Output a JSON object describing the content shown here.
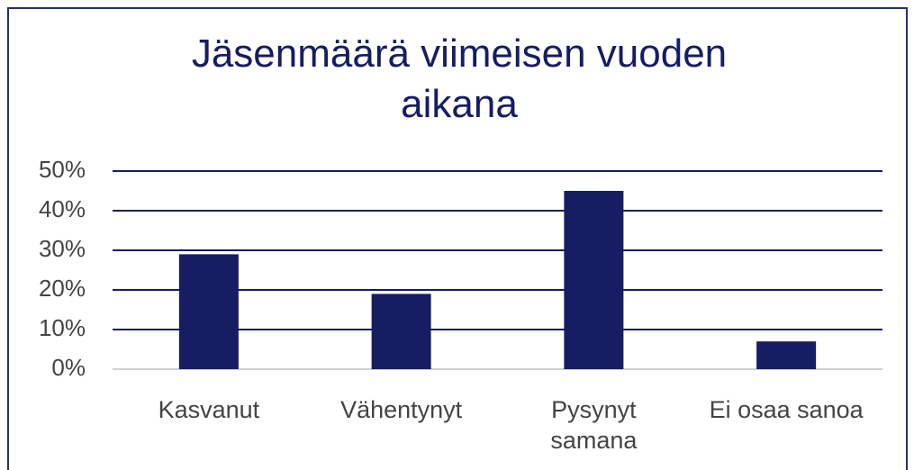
{
  "chart_data": {
    "type": "bar",
    "title": "Jäsenmäärä viimeisen vuoden aikana",
    "categories": [
      "Kasvanut",
      "Vähentynyt",
      "Pysynyt samana",
      "Ei osaa sanoa"
    ],
    "values": [
      29,
      19,
      45,
      7
    ],
    "color": "#161d63",
    "ylim": [
      0,
      50
    ],
    "yticks": [
      {
        "value": 0,
        "label": "0%"
      },
      {
        "value": 10,
        "label": "10%"
      },
      {
        "value": 20,
        "label": "20%"
      },
      {
        "value": 30,
        "label": "30%"
      },
      {
        "value": 40,
        "label": "40%"
      },
      {
        "value": 50,
        "label": "50%"
      }
    ],
    "grid": true
  }
}
